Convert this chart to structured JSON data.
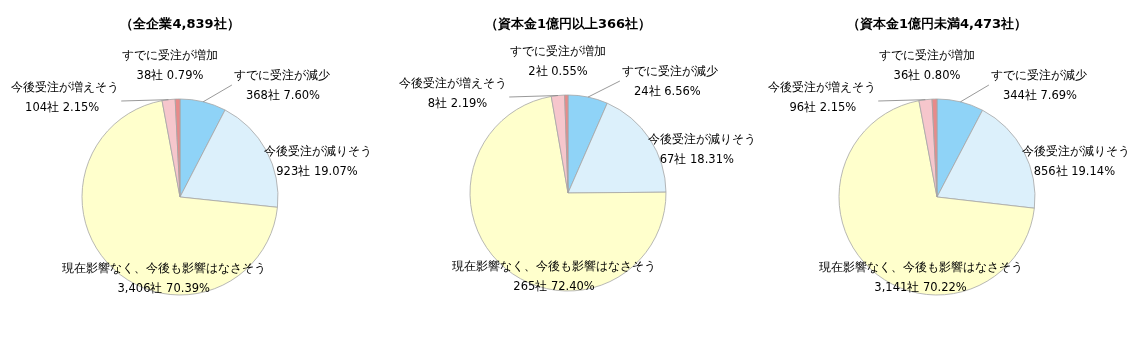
{
  "chart_data": [
    {
      "type": "pie",
      "title": "（全企業4,839社）",
      "categories": [
        "すでに受注が減少",
        "今後受注が減りそう",
        "現在影響なく、今後も影響はなさそう",
        "今後受注が増えそう",
        "すでに受注が増加"
      ],
      "values": [
        368,
        923,
        3406,
        104,
        38
      ],
      "colors": [
        "#8fd3f7",
        "#dcf0fb",
        "#ffffcc",
        "#f6c6cc",
        "#e88a8a"
      ],
      "value_labels": [
        "368社 7.60%",
        "923社 19.07%",
        "3,406社 70.39%",
        "104社 2.15%",
        "38社 0.79%"
      ]
    },
    {
      "type": "pie",
      "title": "（資本金1億円以上366社）",
      "categories": [
        "すでに受注が減少",
        "今後受注が減りそう",
        "現在影響なく、今後も影響はなさそう",
        "今後受注が増えそう",
        "すでに受注が増加"
      ],
      "values": [
        24,
        67,
        265,
        8,
        2
      ],
      "colors": [
        "#8fd3f7",
        "#dcf0fb",
        "#ffffcc",
        "#f6c6cc",
        "#e88a8a"
      ],
      "value_labels": [
        "24社 6.56%",
        "67社 18.31%",
        "265社 72.40%",
        "8社 2.19%",
        "2社 0.55%"
      ]
    },
    {
      "type": "pie",
      "title": "（資本金1億円未満4,473社）",
      "categories": [
        "すでに受注が減少",
        "今後受注が減りそう",
        "現在影響なく、今後も影響はなさそう",
        "今後受注が増えそう",
        "すでに受注が増加"
      ],
      "values": [
        344,
        856,
        3141,
        96,
        36
      ],
      "colors": [
        "#8fd3f7",
        "#dcf0fb",
        "#ffffcc",
        "#f6c6cc",
        "#e88a8a"
      ],
      "value_labels": [
        "344社 7.69%",
        "856社 19.14%",
        "3,141社 70.22%",
        "96社 2.15%",
        "36社 0.80%"
      ]
    }
  ]
}
